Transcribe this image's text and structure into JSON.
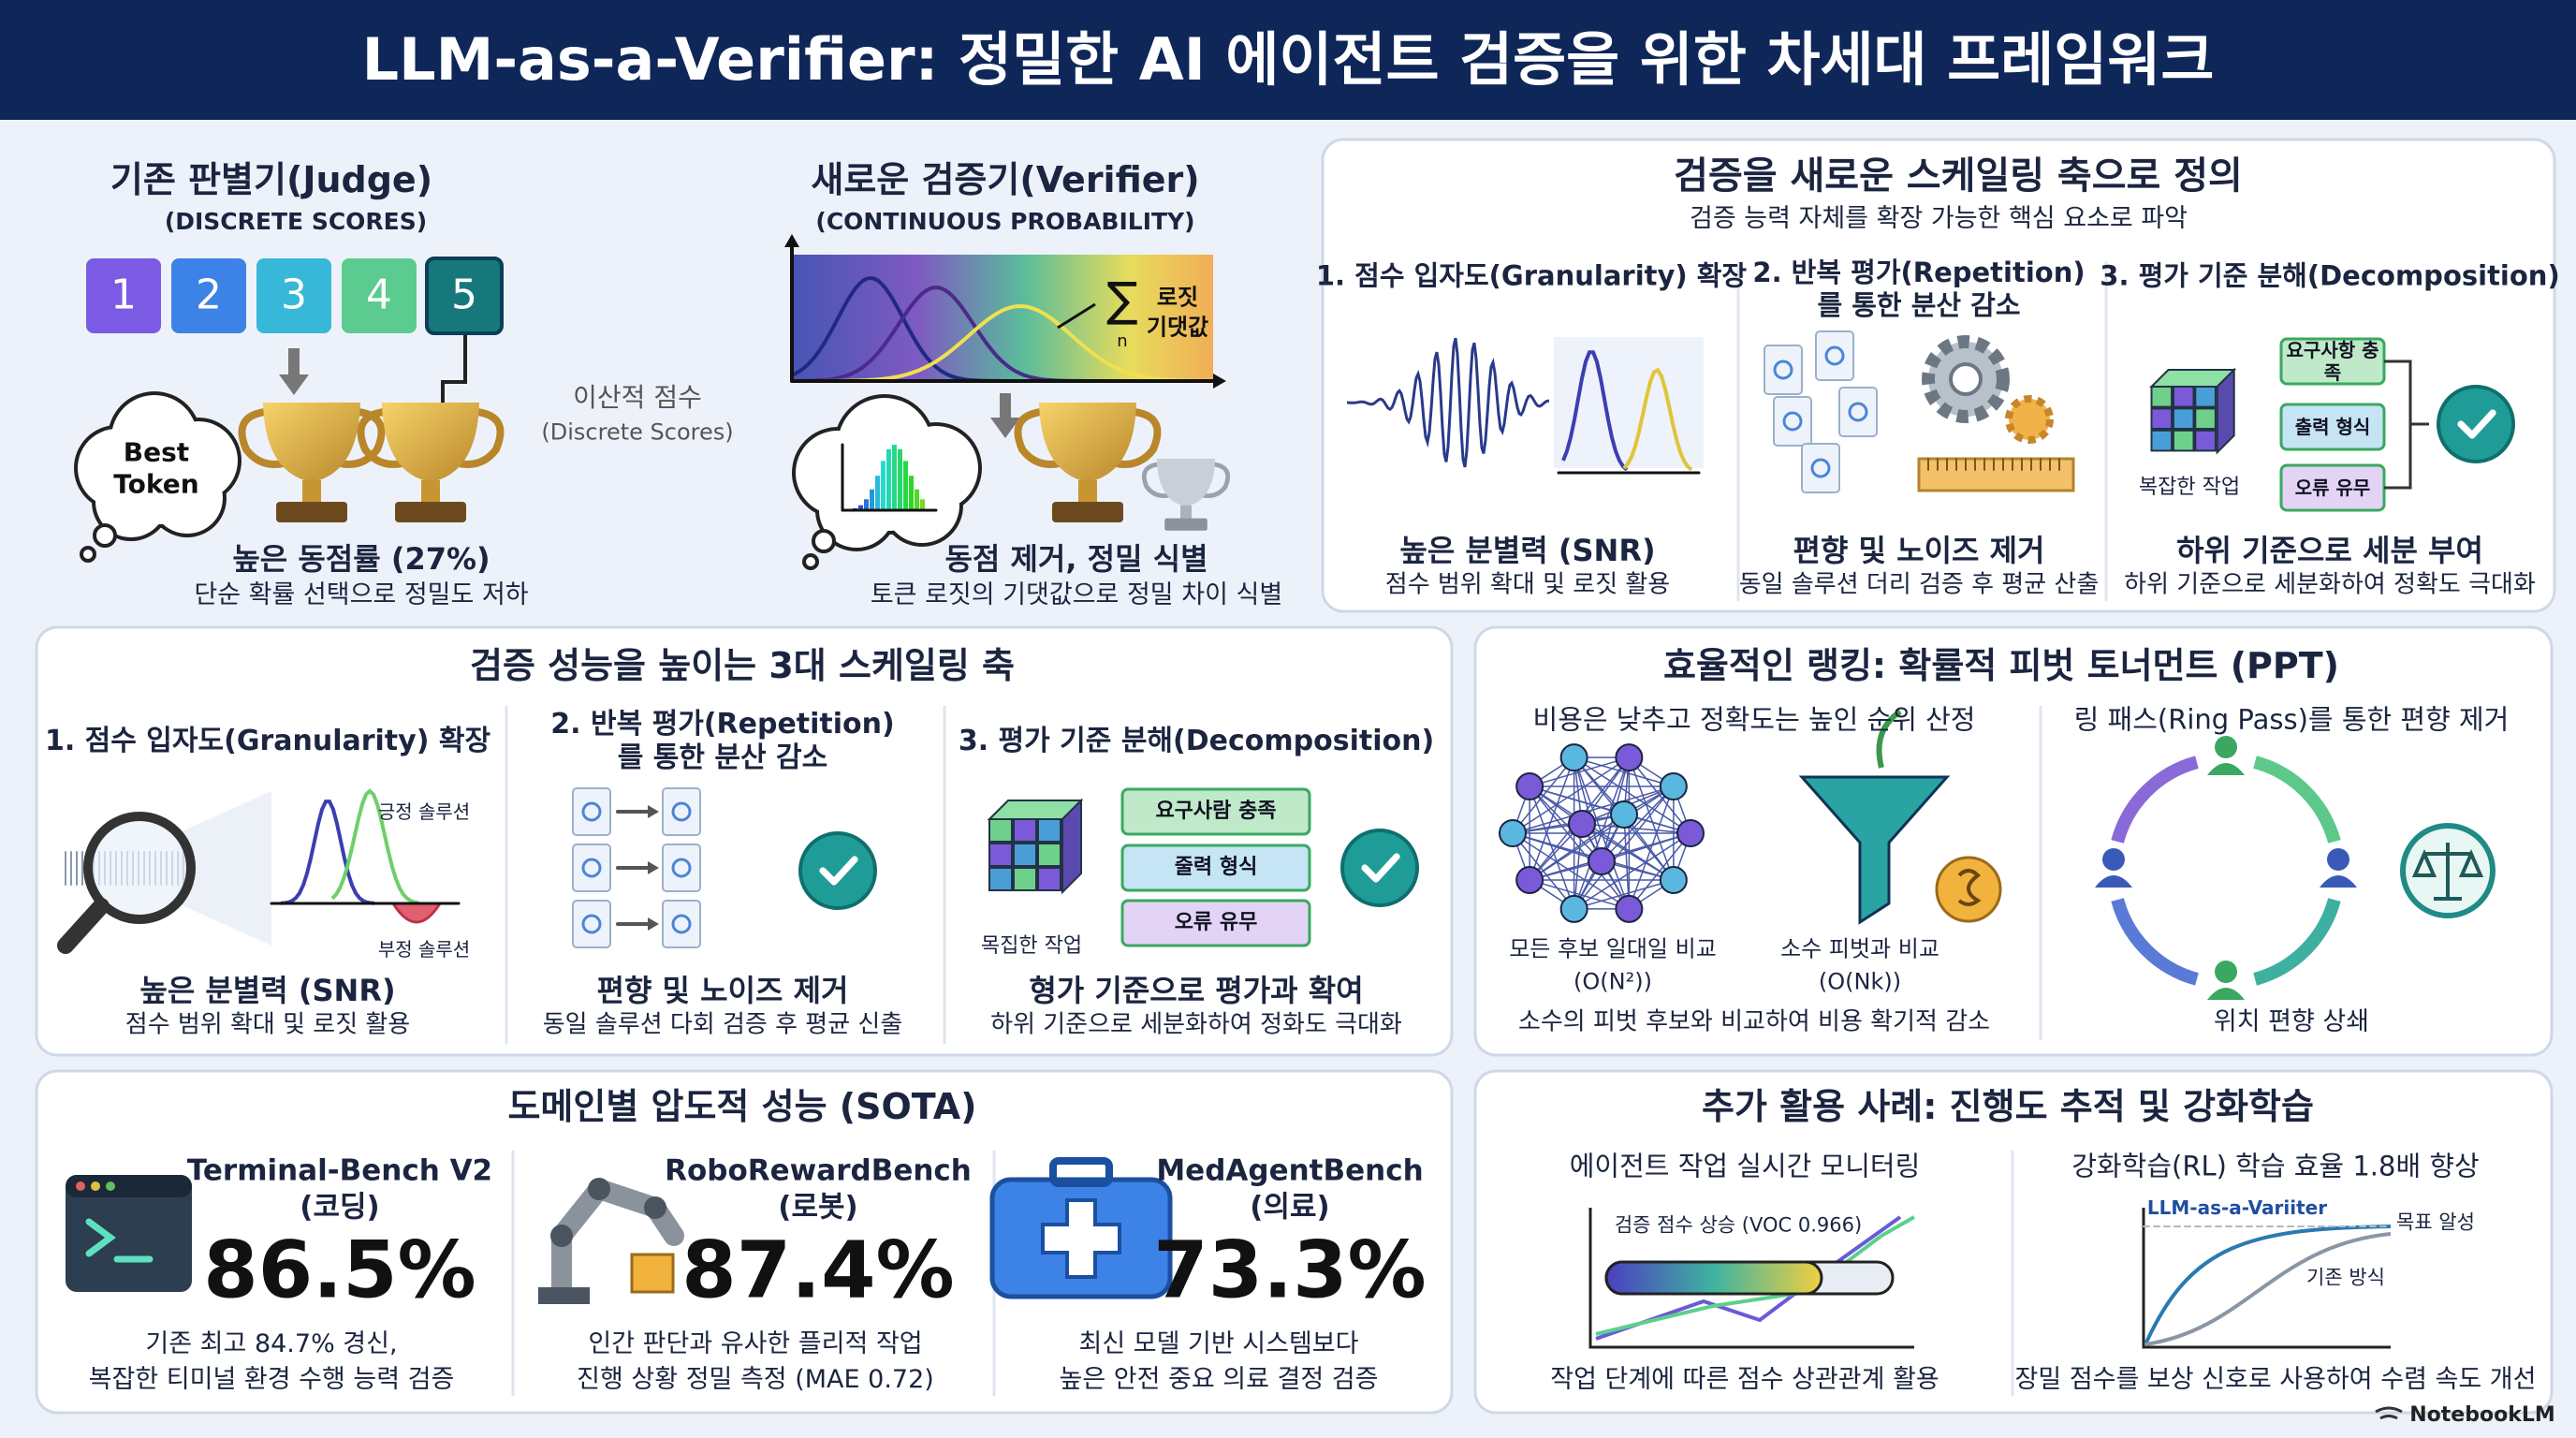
{
  "header": {
    "title": "LLM-as-a-Verifier: 정밀한 AI 에이전트 검증을 위한 차세대 프레임워크"
  },
  "top_left": {
    "judge": {
      "title": "기존 판별기(Judge)",
      "subtitle": "(DISCRETE SCORES)",
      "scores": [
        "1",
        "2",
        "3",
        "4",
        "5"
      ],
      "bubble": "Best Token",
      "caption": "높은 동점률 (27%)",
      "description": "단순 확률 선택으로 정밀도 저하"
    },
    "divider": {
      "label": "이산적 점수",
      "sublabel": "(Discrete Scores)"
    },
    "verifier": {
      "title": "새로운 검증기(Verifier)",
      "subtitle": "(CONTINUOUS PROBABILITY)",
      "formula": {
        "symbol": "∑",
        "index": "n",
        "label": [
          "로짓",
          "기댓값"
        ]
      },
      "caption": "동점 제거, 정밀 식별",
      "description": "토큰 로짓의 기댓값으로 정밀 차이 식별"
    }
  },
  "scaling_axis": {
    "title": "검증을 새로운 스케일링 축으로 정의",
    "subtitle": "검증 능력 자체를 확장 가능한 핵심 요소로 파악",
    "columns": [
      {
        "heading": "1. 점수 입자도(Granularity) 확장",
        "caption": "높은 분별력 (SNR)",
        "description": "점수 범위 확대 및 로짓 활용"
      },
      {
        "heading": "2. 반복 평가(Repetition)를 통한 분산 감소",
        "caption": "편향 및 노이즈 제거",
        "description": "동일 솔루션 더리 검증 후 평균 산출"
      },
      {
        "heading": "3. 평가 기준 분해(Decomposition)",
        "tags": [
          "요구사항 충족",
          "출력 형식",
          "오류 유무"
        ],
        "task": "복잡한 작업",
        "caption": "하위 기준으로 세분 부여",
        "description": "하위 기준으로 세분화하여 정확도 극대화"
      }
    ]
  },
  "three_axes": {
    "title": "검증 성능을 높이는 3대 스케일링 축",
    "columns": [
      {
        "heading": "1. 점수 입자도(Granularity) 확장",
        "positive": "긍정 솔루션",
        "negative": "부정 솔루션",
        "caption": "높은 분별력 (SNR)",
        "description": "점수 범위 확대 및 로짓 활용"
      },
      {
        "heading": "2. 반복 평가(Repetition)를 통한 분산 감소",
        "caption": "편향 및 노이즈 제거",
        "description": "동일 솔루션 다회 검증 후 평균 신출"
      },
      {
        "heading": "3. 평가 기준 분해(Decomposition)",
        "tags": [
          "요구사람 충족",
          "줄력 형식",
          "오류 유무"
        ],
        "task": "목집한 작업",
        "caption": "형가 기준으로 평가과 확여",
        "description": "하위 기준으로 세분화하여 정화도 극대화"
      }
    ]
  },
  "ranking": {
    "title": "효율적인 랭킹: 확률적 피벗 토너먼트 (PPT)",
    "left": {
      "heading": "비용은 낮추고 정확도는 높인 순위 산정",
      "methods": [
        {
          "label": "모든 후보 일대일 비교",
          "complexity": "(O(N²))"
        },
        {
          "label": "소수 피벗과 비교",
          "complexity": "(O(Nk))"
        }
      ],
      "caption": "소수의 피벗 후보와 비교하여 비용 확기적 감소"
    },
    "right": {
      "heading": "링 패스(Ring Pass)를 통한 편향 제거",
      "caption": "위치 편향 상쇄"
    }
  },
  "sota": {
    "title": "도메인별 압도적 성능 (SOTA)",
    "benchmarks": [
      {
        "name": "Terminal-Bench V2",
        "domain": "(코딩)",
        "score": "86.5%",
        "description": [
          "기존 최고 84.7% 경신,",
          "복잡한 티미널 환경 수행 능력 검증"
        ]
      },
      {
        "name": "RoboRewardBench",
        "domain": "(로봇)",
        "score": "87.4%",
        "description": [
          "인간 판단과 유사한 플리적 작업",
          "진행 상황 정밀 측정 (MAE 0.72)"
        ]
      },
      {
        "name": "MedAgentBench",
        "domain": "(의료)",
        "score": "73.3%",
        "description": [
          "최신 모델 기반 시스템보다",
          "높은 안전 중요 의료 결정 검증"
        ]
      }
    ]
  },
  "applications": {
    "title": "추가 활용 사례: 진행도 추적 및 강화학습",
    "monitoring": {
      "heading": "에이전트 작업 실시간 모니터링",
      "chart_label": "검증 점수 상승 (VOC 0.966)",
      "caption": "작업 단계에 따른 점수 상관관계 활용"
    },
    "rl": {
      "heading": "강화학습(RL) 학습 효율 1.8배 향상",
      "series_label": "LLM-as-a-Variiter",
      "target_label": "목표 알성",
      "baseline_label": "기존 방식",
      "caption": "장밀 점수를 보상 신호로 사용하여 수렴 속도 개선"
    }
  },
  "footer": {
    "brand": "NotebookLM"
  }
}
